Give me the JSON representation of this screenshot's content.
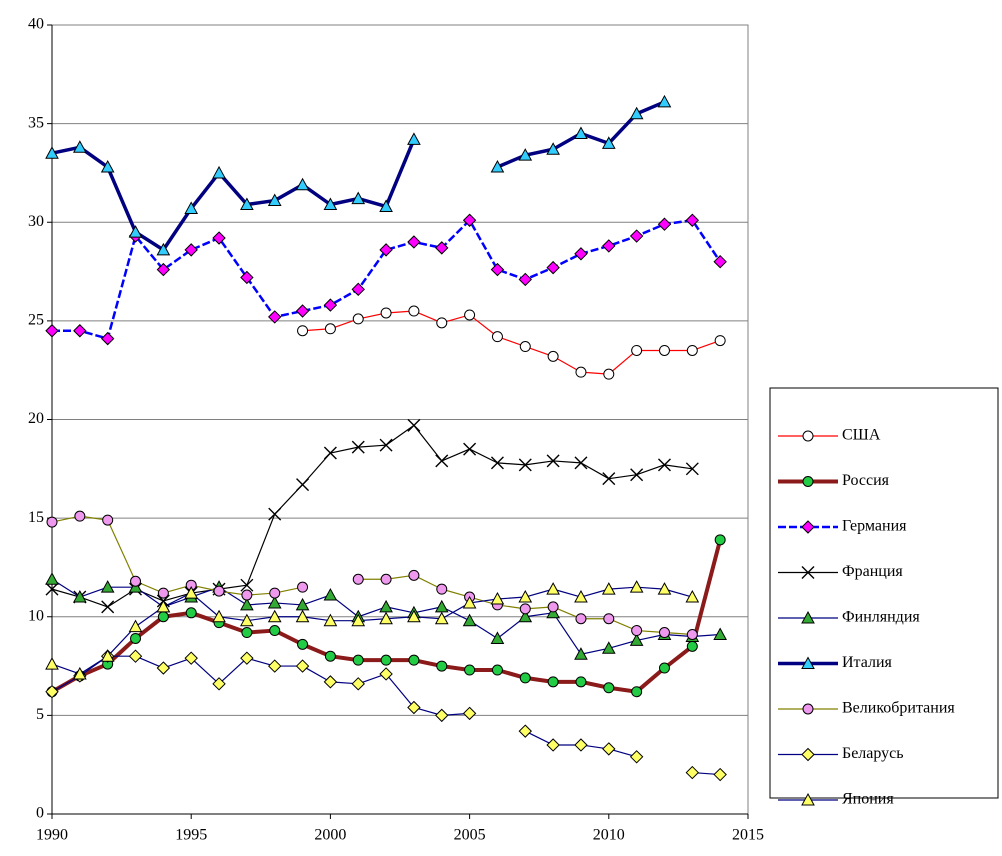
{
  "chart_data": {
    "type": "line",
    "x": [
      1990,
      1991,
      1992,
      1993,
      1994,
      1995,
      1996,
      1997,
      1998,
      1999,
      2000,
      2001,
      2002,
      2003,
      2004,
      2005,
      2006,
      2007,
      2008,
      2009,
      2010,
      2011,
      2012,
      2013,
      2014
    ],
    "xlim": [
      1990,
      2015
    ],
    "xticks": [
      1990,
      1995,
      2000,
      2005,
      2010,
      2015
    ],
    "ylim": [
      0,
      40
    ],
    "yticks": [
      0,
      5,
      10,
      15,
      20,
      25,
      30,
      35,
      40
    ],
    "grid": true,
    "legend": "right",
    "series": [
      {
        "name": "США",
        "color": "#ff0000",
        "marker": "circle",
        "marker_color": "#ffffff",
        "width": 1.2,
        "values": [
          null,
          null,
          null,
          null,
          null,
          null,
          null,
          null,
          null,
          24.5,
          24.6,
          25.1,
          25.4,
          25.5,
          24.9,
          25.3,
          24.2,
          23.7,
          23.2,
          22.4,
          22.3,
          23.5,
          23.5,
          23.5,
          24.0
        ]
      },
      {
        "name": "Россия",
        "color": "#8b1a1a",
        "marker": "circle",
        "marker_color": "#22cc44",
        "width": 4,
        "values": [
          6.2,
          7.0,
          7.6,
          8.9,
          10.0,
          10.2,
          9.7,
          9.2,
          9.3,
          8.6,
          8.0,
          7.8,
          7.8,
          7.8,
          7.5,
          7.3,
          7.3,
          6.9,
          6.7,
          6.7,
          6.4,
          6.2,
          7.4,
          8.5,
          13.9
        ]
      },
      {
        "name": "Германия",
        "color": "#0000ff",
        "marker": "diamond",
        "marker_color": "#ff00ff",
        "width": 2.5,
        "dash": true,
        "values": [
          24.5,
          24.5,
          24.1,
          29.3,
          27.6,
          28.6,
          29.2,
          27.2,
          25.2,
          25.5,
          25.8,
          26.6,
          28.6,
          29.0,
          28.7,
          30.1,
          27.6,
          27.1,
          27.7,
          28.4,
          28.8,
          29.3,
          29.9,
          30.1,
          28.0
        ]
      },
      {
        "name": "Франция",
        "color": "#000000",
        "marker": "x",
        "marker_color": "#000000",
        "width": 1.2,
        "values": [
          11.4,
          11.0,
          10.5,
          11.4,
          10.8,
          11.2,
          11.4,
          11.6,
          15.2,
          16.7,
          18.3,
          18.6,
          18.7,
          19.7,
          17.9,
          18.5,
          17.8,
          17.7,
          17.9,
          17.8,
          17.0,
          17.2,
          17.7,
          17.5,
          null
        ]
      },
      {
        "name": "Финляндия",
        "color": "#000080",
        "marker": "triangle",
        "marker_color": "#33aa33",
        "width": 1.2,
        "values": [
          11.9,
          11.0,
          11.5,
          11.5,
          10.5,
          11.0,
          11.5,
          10.6,
          10.7,
          10.6,
          11.1,
          10.0,
          10.5,
          10.2,
          10.5,
          9.8,
          8.9,
          10.0,
          10.2,
          8.1,
          8.4,
          8.8,
          9.1,
          9.0,
          9.1
        ]
      },
      {
        "name": "Италия",
        "color": "#000080",
        "marker": "triangle",
        "marker_color": "#33ccff",
        "width": 3.5,
        "values": [
          33.5,
          33.8,
          32.8,
          29.5,
          28.6,
          30.7,
          32.5,
          30.9,
          31.1,
          31.9,
          30.9,
          31.2,
          30.8,
          34.2,
          null,
          null,
          32.8,
          33.4,
          33.7,
          34.5,
          34.0,
          35.5,
          36.1,
          null,
          null
        ]
      },
      {
        "name": "Великобритания",
        "color": "#808000",
        "marker": "circle",
        "marker_color": "#ee99ee",
        "width": 1.2,
        "values": [
          14.8,
          15.1,
          14.9,
          11.8,
          11.2,
          11.6,
          11.3,
          11.1,
          11.2,
          11.5,
          null,
          11.9,
          11.9,
          12.1,
          11.4,
          11.0,
          10.6,
          10.4,
          10.5,
          9.9,
          9.9,
          9.3,
          9.2,
          9.1,
          null
        ]
      },
      {
        "name": "Беларусь",
        "color": "#000080",
        "marker": "diamond",
        "marker_color": "#ffff66",
        "width": 1.2,
        "values": [
          6.2,
          7.0,
          8.0,
          8.0,
          7.4,
          7.9,
          6.6,
          7.9,
          7.5,
          7.5,
          6.7,
          6.6,
          7.1,
          5.4,
          5.0,
          5.1,
          null,
          4.2,
          3.5,
          3.5,
          3.3,
          2.9,
          null,
          2.1,
          2.0
        ]
      },
      {
        "name": "Япония",
        "color": "#000080",
        "marker": "triangle",
        "marker_color": "#ffff66",
        "width": 1.2,
        "values": [
          7.6,
          7.1,
          8.0,
          9.5,
          10.5,
          11.2,
          10.0,
          9.8,
          10.0,
          10.0,
          9.8,
          9.8,
          9.9,
          10.0,
          9.9,
          10.7,
          10.9,
          11.0,
          11.4,
          11.0,
          11.4,
          11.5,
          11.4,
          11.0,
          null
        ]
      }
    ]
  }
}
